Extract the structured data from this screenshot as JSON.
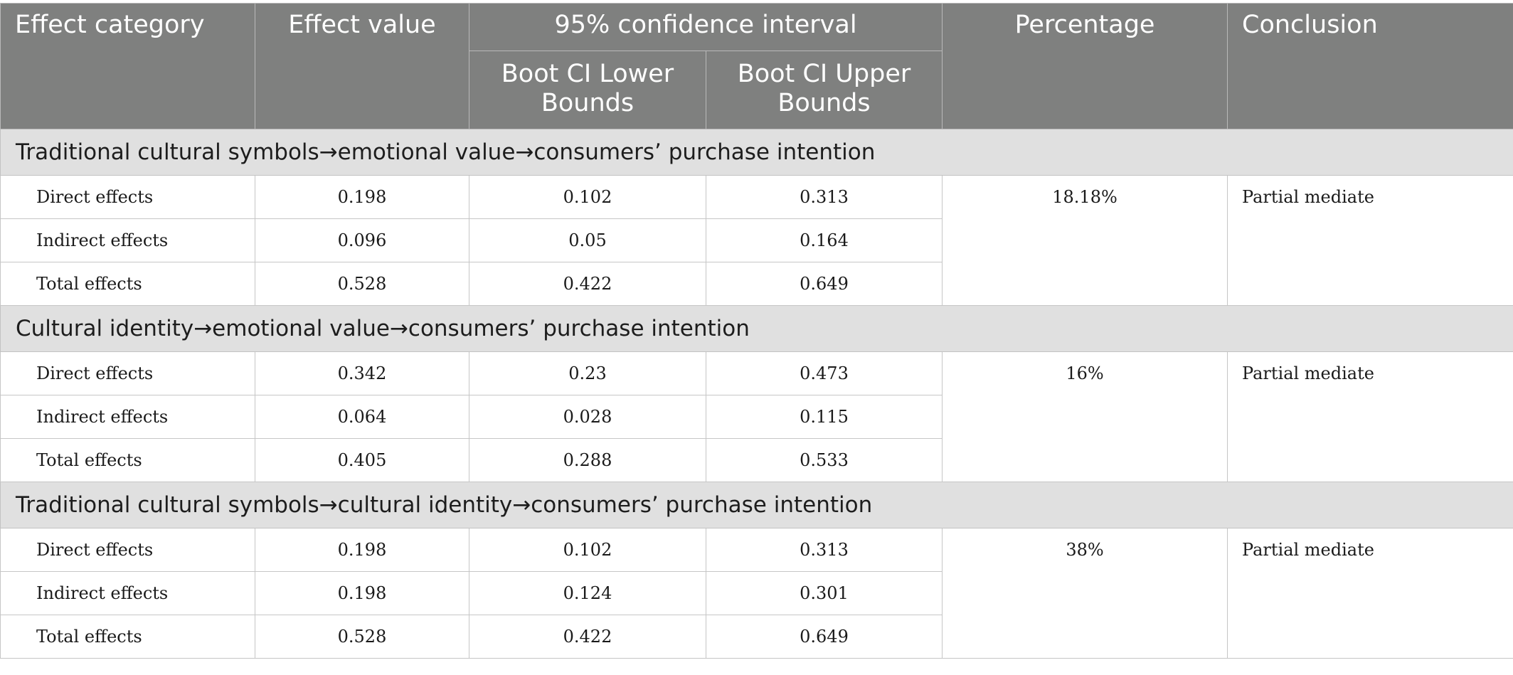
{
  "header": {
    "effect_category": "Effect category",
    "effect_value": "Effect value",
    "confidence_interval": "95% confidence interval",
    "lower_bounds": "Boot CI Lower Bounds",
    "upper_bounds": "Boot CI Upper Bounds",
    "percentage": "Percentage",
    "conclusion": "Conclusion"
  },
  "groups": [
    {
      "title": "Traditional cultural symbols→emotional value→consumers’ purchase intention",
      "percentage": "18.18%",
      "conclusion": "Partial mediate",
      "rows": [
        {
          "effect": "Direct effects",
          "value": "0.198",
          "lower": "0.102",
          "upper": "0.313"
        },
        {
          "effect": "Indirect effects",
          "value": "0.096",
          "lower": "0.05",
          "upper": "0.164"
        },
        {
          "effect": "Total effects",
          "value": "0.528",
          "lower": "0.422",
          "upper": "0.649"
        }
      ]
    },
    {
      "title": "Cultural identity→emotional value→consumers’ purchase intention",
      "percentage": "16%",
      "conclusion": "Partial mediate",
      "rows": [
        {
          "effect": "Direct effects",
          "value": "0.342",
          "lower": "0.23",
          "upper": "0.473"
        },
        {
          "effect": "Indirect effects",
          "value": "0.064",
          "lower": "0.028",
          "upper": "0.115"
        },
        {
          "effect": "Total effects",
          "value": "0.405",
          "lower": "0.288",
          "upper": "0.533"
        }
      ]
    },
    {
      "title": "Traditional cultural symbols→cultural identity→consumers’ purchase intention",
      "percentage": "38%",
      "conclusion": "Partial mediate",
      "rows": [
        {
          "effect": "Direct effects",
          "value": "0.198",
          "lower": "0.102",
          "upper": "0.313"
        },
        {
          "effect": "Indirect effects",
          "value": "0.198",
          "lower": "0.124",
          "upper": "0.301"
        },
        {
          "effect": "Total effects",
          "value": "0.528",
          "lower": "0.422",
          "upper": "0.649"
        }
      ]
    }
  ],
  "colors": {
    "header_background": "#7f807f",
    "group_background": "#e0e0e0",
    "header_text": "#ffffff"
  }
}
